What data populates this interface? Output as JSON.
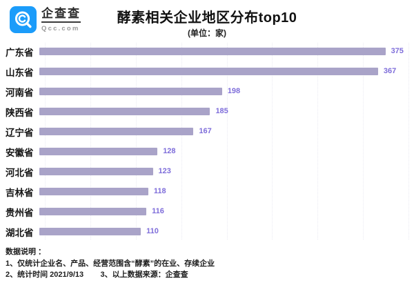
{
  "logo": {
    "brand": "企查查",
    "domain": "Qcc.com",
    "icon": "qcc-magnifier-icon",
    "color": "#1b9cfa"
  },
  "header": {
    "title": "酵素相关企业地区分布top10",
    "subtitle": "(单位：家)"
  },
  "chart_data": {
    "type": "bar",
    "orientation": "horizontal",
    "title": "酵素相关企业地区分布top10",
    "unit_label": "(单位：家)",
    "categories": [
      "广东省",
      "山东省",
      "河南省",
      "陕西省",
      "辽宁省",
      "安徽省",
      "河北省",
      "吉林省",
      "贵州省",
      "湖北省"
    ],
    "values": [
      375,
      367,
      198,
      185,
      167,
      128,
      123,
      118,
      116,
      110
    ],
    "xlim": [
      0,
      400
    ],
    "gridline_interval": 50,
    "grid": true,
    "legend": false,
    "bar_color": "#a9a3c8",
    "value_color": "#7e6dda",
    "grid_color": "#eaeaf2"
  },
  "footer": {
    "lines": [
      "数据说明 ：",
      "1、仅统计企业名、产品、经营范围含“酵素”的在业、存续企业",
      "2、统计时间 2021/9/13        3、以上数据来源：企查查"
    ]
  }
}
